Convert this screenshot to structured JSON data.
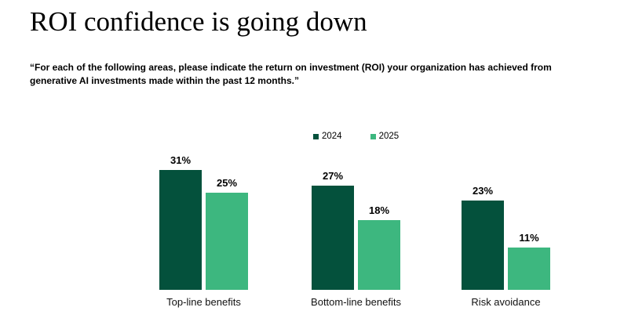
{
  "slide": {
    "title": "ROI confidence is going down",
    "subtitle_line1": "“For each of the following areas, please indicate the return on investment (ROI) your organization has achieved from",
    "subtitle_line2": "generative AI investments made within the past 12 months.”"
  },
  "chart_data": {
    "type": "bar",
    "title": "",
    "categories": [
      "Top-line benefits",
      "Bottom-line benefits",
      "Risk avoidance"
    ],
    "series": [
      {
        "name": "2024",
        "color": "#04513C",
        "values": [
          31,
          27,
          23
        ]
      },
      {
        "name": "2025",
        "color": "#3DB77F",
        "values": [
          25,
          18,
          11
        ]
      }
    ],
    "value_suffix": "%",
    "data_labels": true,
    "xlabel": "",
    "ylabel": "",
    "ylim": [
      0,
      35
    ],
    "grid": false,
    "legend_position": "top-center",
    "background": "#ffffff"
  }
}
